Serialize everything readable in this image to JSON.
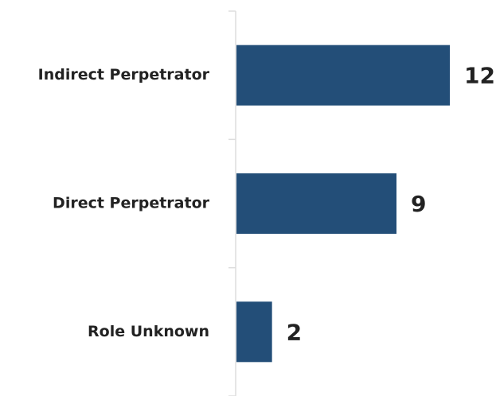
{
  "chart_data": {
    "type": "bar",
    "orientation": "horizontal",
    "categories": [
      "Indirect Perpetrator",
      "Direct Perpetrator",
      "Role Unknown"
    ],
    "values": [
      12,
      9,
      2
    ],
    "color": "#234e78",
    "xlim": [
      0,
      12
    ]
  }
}
